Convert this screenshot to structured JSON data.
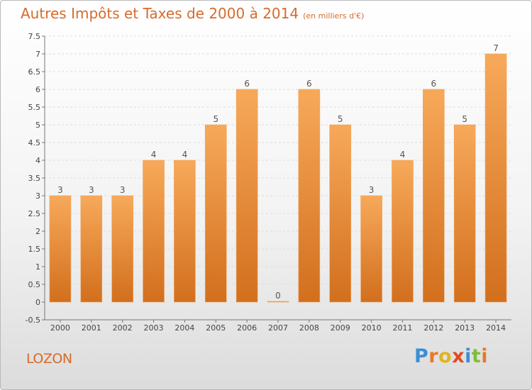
{
  "title": "Autres Impôts et Taxes de 2000 à 2014",
  "unit": "(en milliers d'€)",
  "town": "LOZON",
  "brand": {
    "text": "Proxiti",
    "letter_colors": [
      "#3a8fd6",
      "#e8782a",
      "#e0b320",
      "#e34a1e",
      "#3a8fd6",
      "#7fbd3a",
      "#e8782a"
    ]
  },
  "colors": {
    "bar_top": "#f7a95a",
    "bar_bottom": "#d26f1d",
    "label": "#555555",
    "title": "#d86a2b"
  },
  "chart_data": {
    "type": "bar",
    "categories": [
      "2000",
      "2001",
      "2002",
      "2003",
      "2004",
      "2005",
      "2006",
      "2007",
      "2008",
      "2009",
      "2010",
      "2011",
      "2012",
      "2013",
      "2014"
    ],
    "values": [
      3,
      3,
      3,
      4,
      4,
      5,
      6,
      0,
      6,
      5,
      3,
      4,
      6,
      5,
      7
    ],
    "data_labels": [
      "3",
      "3",
      "3",
      "4",
      "4",
      "5",
      "6",
      "0",
      "6",
      "5",
      "3",
      "4",
      "6",
      "5",
      "7"
    ],
    "ylim": [
      -0.5,
      7.5
    ],
    "yticks": [
      -0.5,
      0,
      0.5,
      1,
      1.5,
      2,
      2.5,
      3,
      3.5,
      4,
      4.5,
      5,
      5.5,
      6,
      6.5,
      7,
      7.5
    ],
    "ytick_labels": [
      "-0.5",
      "0",
      "0.5",
      "1",
      "1.5",
      "2",
      "2.5",
      "3",
      "3.5",
      "4",
      "4.5",
      "5",
      "5.5",
      "6",
      "6.5",
      "7",
      "7.5"
    ],
    "grid": true,
    "title": "Autres Impôts et Taxes de 2000 à 2014",
    "xlabel": "",
    "ylabel": ""
  }
}
